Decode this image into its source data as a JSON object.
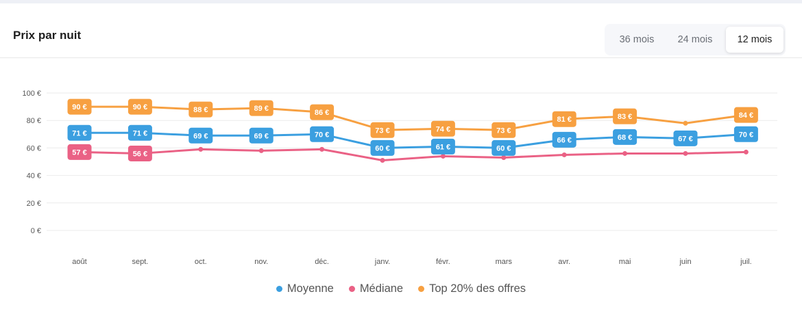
{
  "header": {
    "title": "Prix par nuit",
    "periods": [
      "36 mois",
      "24 mois",
      "12 mois"
    ],
    "active_period": "12 mois"
  },
  "chart_data": {
    "type": "line",
    "title": "Prix par nuit",
    "categories": [
      "août",
      "sept.",
      "oct.",
      "nov.",
      "déc.",
      "janv.",
      "févr.",
      "mars",
      "avr.",
      "mai",
      "juin",
      "juil."
    ],
    "ylim": [
      0,
      100
    ],
    "yticks": [
      0,
      20,
      40,
      60,
      80,
      100
    ],
    "ytick_labels": [
      "0 €",
      "20 €",
      "40 €",
      "60 €",
      "80 €",
      "100 €"
    ],
    "grid": true,
    "legend_position": "bottom",
    "series": [
      {
        "name": "Top 20% des offres",
        "color": "#f7a041",
        "values": [
          90,
          90,
          88,
          89,
          86,
          73,
          74,
          73,
          81,
          83,
          78,
          84
        ],
        "labels": [
          "90 €",
          "90 €",
          "88 €",
          "89 €",
          "86 €",
          "73 €",
          "74 €",
          "73 €",
          "81 €",
          "83 €",
          null,
          "84 €"
        ]
      },
      {
        "name": "Moyenne",
        "color": "#3b9fe0",
        "values": [
          71,
          71,
          69,
          69,
          70,
          60,
          61,
          60,
          66,
          68,
          67,
          70
        ],
        "labels": [
          "71 €",
          "71 €",
          "69 €",
          "69 €",
          "70 €",
          "60 €",
          "61 €",
          "60 €",
          "66 €",
          "68 €",
          "67 €",
          "70 €"
        ]
      },
      {
        "name": "Médiane",
        "color": "#ea6185",
        "values": [
          57,
          56,
          59,
          58,
          59,
          51,
          54,
          53,
          55,
          56,
          56,
          57
        ],
        "labels": [
          "57 €",
          "56 €",
          null,
          null,
          null,
          null,
          null,
          null,
          null,
          null,
          null,
          null
        ]
      }
    ],
    "legend": [
      "Moyenne",
      "Médiane",
      "Top 20% des offres"
    ]
  }
}
